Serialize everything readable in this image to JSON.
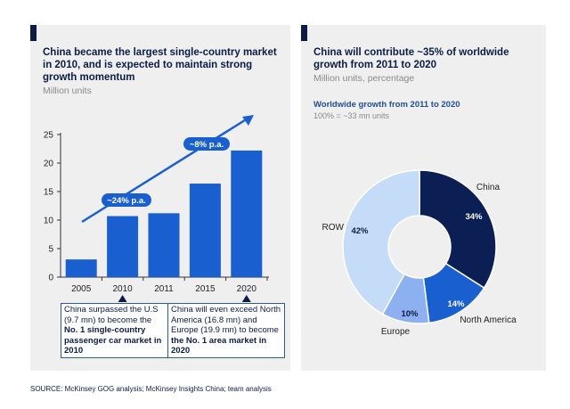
{
  "left_panel": {
    "title": "China became the largest single-country market in 2010, and is expected to maintain strong growth momentum",
    "subtitle": "Million units",
    "growth_labels": [
      "~24% p.a.",
      "~8% p.a."
    ],
    "notes": [
      {
        "parts": [
          {
            "text": "China surpassed the U.S (9.7 mn) to become the ",
            "bold": false
          },
          {
            "text": "No. 1 single-country passenger car market in 2010",
            "bold": true
          }
        ]
      },
      {
        "parts": [
          {
            "text": "China will even exceed North America (16.8 mn) and Europe (19.9 mn) to become ",
            "bold": false
          },
          {
            "text": "the No. 1 area market in 2020",
            "bold": true
          }
        ]
      }
    ]
  },
  "right_panel": {
    "title": "China will contribute ~35% of worldwide growth from 2011 to 2020",
    "subtitle": "Million units, percentage",
    "donut_title": "Worldwide growth from 2011 to 2020",
    "donut_subtitle": "100% = ~33 mn units"
  },
  "source": "SOURCE: McKinsey GOG analysis; McKinsey Insights China; team analysis",
  "colors": {
    "navy": "#0b1c45",
    "bar_blue": "#1a5fd0",
    "arrow_blue": "#1a5fd0",
    "pie_china": "#0b1f55",
    "pie_north_america": "#1a5fd0",
    "pie_europe": "#8cb0f0",
    "pie_row": "#c4dcf7",
    "panel_bg": "#efefef"
  },
  "chart_data": [
    {
      "type": "bar",
      "categories": [
        "2005",
        "2010",
        "2011",
        "2015",
        "2020"
      ],
      "values": [
        3.1,
        10.7,
        11.2,
        16.4,
        22.2
      ],
      "ylim": [
        0,
        25
      ],
      "yticks": [
        "0",
        "5",
        "10",
        "15",
        "20",
        "25"
      ],
      "title": "",
      "xlabel": "",
      "ylabel": "",
      "grid": false
    },
    {
      "type": "pie",
      "labels": [
        "China",
        "North America",
        "Europe",
        "ROW"
      ],
      "values": [
        34,
        14,
        10,
        42
      ],
      "value_labels": [
        "34%",
        "14%",
        "10%",
        "42%"
      ],
      "donut": true
    }
  ]
}
